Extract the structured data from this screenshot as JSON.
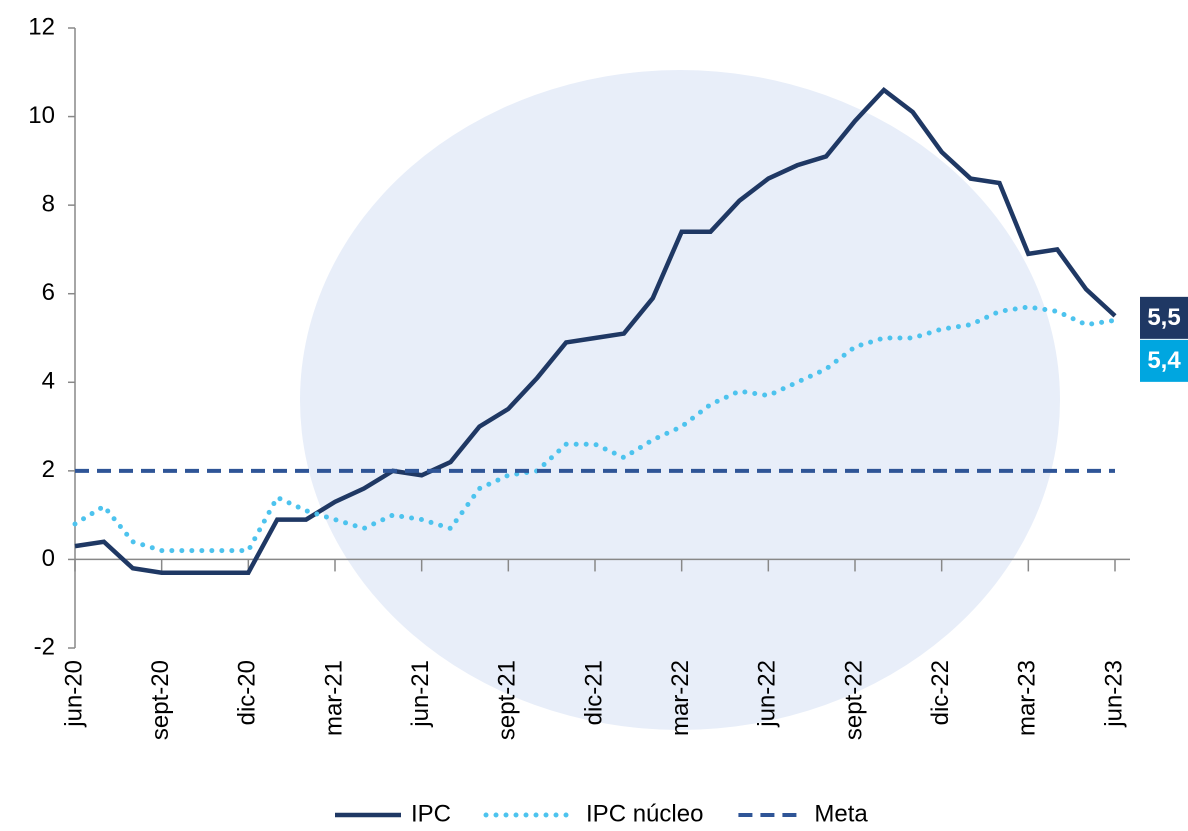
{
  "chart_data": {
    "type": "line",
    "categories": [
      "jun-20",
      null,
      null,
      "sept-20",
      null,
      null,
      "dic-20",
      null,
      null,
      "mar-21",
      null,
      null,
      "jun-21",
      null,
      null,
      "sept-21",
      null,
      null,
      "dic-21",
      null,
      null,
      "mar-22",
      null,
      null,
      "jun-22",
      null,
      null,
      "sept-22",
      null,
      null,
      "dic-22",
      null,
      null,
      "mar-23",
      null,
      null,
      "jun-23"
    ],
    "series": [
      {
        "name": "IPC",
        "color": "#1f3864",
        "style": "solid",
        "values": [
          0.3,
          0.4,
          -0.2,
          -0.3,
          -0.3,
          -0.3,
          -0.3,
          0.9,
          0.9,
          1.3,
          1.6,
          2.0,
          1.9,
          2.2,
          3.0,
          3.4,
          4.1,
          4.9,
          5.0,
          5.1,
          5.9,
          7.4,
          7.4,
          8.1,
          8.6,
          8.9,
          9.1,
          9.9,
          10.6,
          10.1,
          9.2,
          8.6,
          8.5,
          6.9,
          7.0,
          6.1,
          5.5
        ],
        "value_labels": [
          null,
          null,
          null,
          null,
          null,
          null,
          null,
          null,
          null,
          null,
          null,
          null,
          null,
          null,
          null,
          null,
          null,
          null,
          null,
          null,
          null,
          null,
          null,
          null,
          null,
          null,
          null,
          null,
          null,
          null,
          null,
          null,
          null,
          null,
          null,
          null,
          "5,5"
        ]
      },
      {
        "name": "IPC núcleo",
        "color": "#4dc3ee",
        "style": "dotted",
        "label_color": "#00a6e0",
        "values": [
          0.8,
          1.2,
          0.4,
          0.2,
          0.2,
          0.2,
          0.2,
          1.4,
          1.1,
          0.9,
          0.7,
          1.0,
          0.9,
          0.7,
          1.6,
          1.9,
          2.0,
          2.6,
          2.6,
          2.3,
          2.7,
          3.0,
          3.5,
          3.8,
          3.7,
          4.0,
          4.3,
          4.8,
          5.0,
          5.0,
          5.2,
          5.3,
          5.6,
          5.7,
          5.6,
          5.3,
          5.4
        ],
        "value_labels": [
          null,
          null,
          null,
          null,
          null,
          null,
          null,
          null,
          null,
          null,
          null,
          null,
          null,
          null,
          null,
          null,
          null,
          null,
          null,
          null,
          null,
          null,
          null,
          null,
          null,
          null,
          null,
          null,
          null,
          null,
          null,
          null,
          null,
          null,
          null,
          null,
          "5,4"
        ]
      },
      {
        "name": "Meta",
        "color": "#2f5597",
        "style": "dashed",
        "values": [
          2,
          2,
          2,
          2,
          2,
          2,
          2,
          2,
          2,
          2,
          2,
          2,
          2,
          2,
          2,
          2,
          2,
          2,
          2,
          2,
          2,
          2,
          2,
          2,
          2,
          2,
          2,
          2,
          2,
          2,
          2,
          2,
          2,
          2,
          2,
          2,
          2
        ]
      }
    ],
    "ylim": [
      -2,
      12
    ],
    "yticks": [
      -2,
      0,
      2,
      4,
      6,
      8,
      10,
      12
    ],
    "legend": "bottom"
  }
}
